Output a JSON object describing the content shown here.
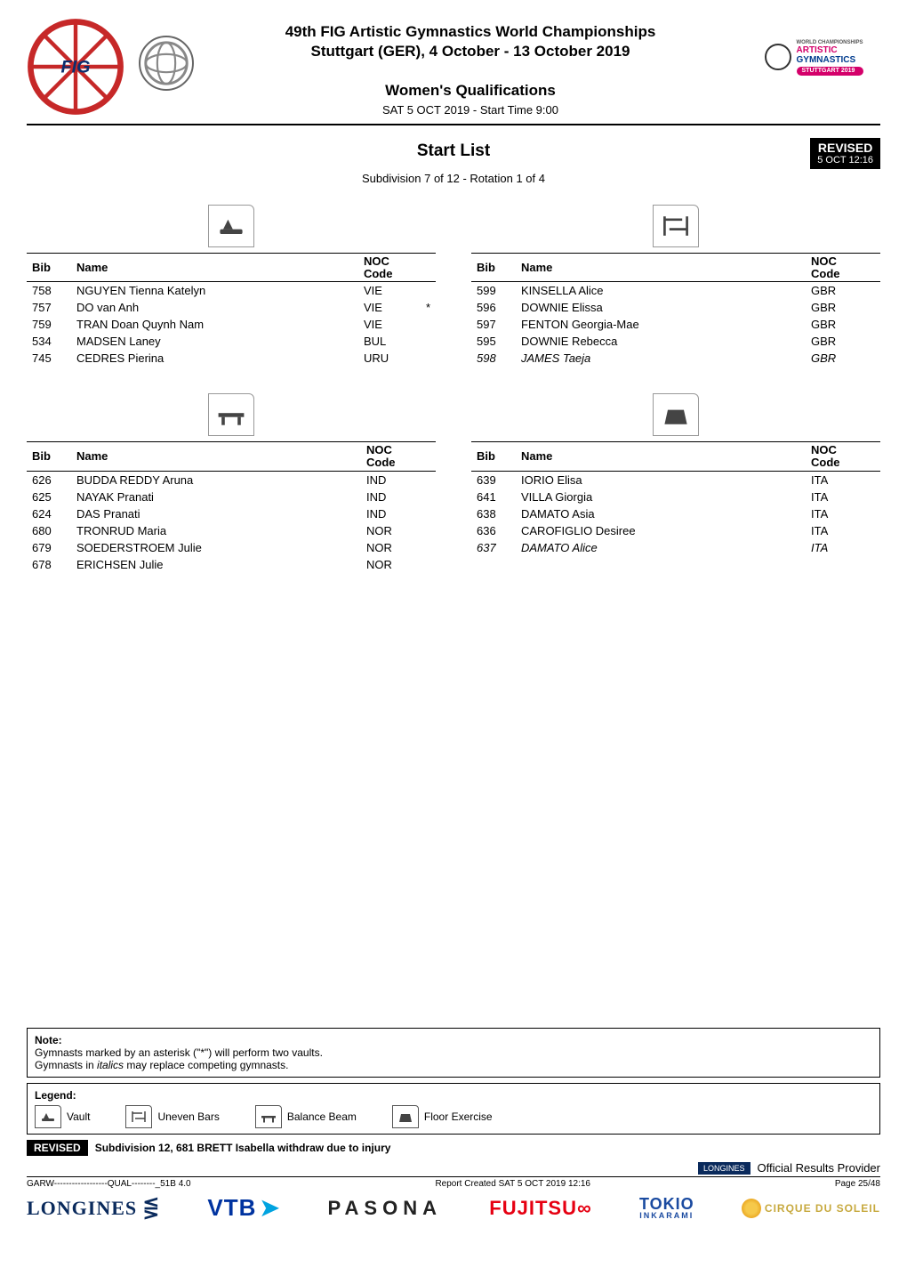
{
  "header": {
    "event_title": "49th FIG Artistic Gymnastics World Championships",
    "event_subtitle": "Stuttgart (GER), 4 October - 13 October 2019",
    "section_title": "Women's Qualifications",
    "session_line": "SAT 5 OCT 2019 - Start Time 9:00",
    "right_logo": {
      "line0": "WORLD CHAMPIONSHIPS",
      "line1": "ARTISTIC",
      "line2": "GYMNASTICS",
      "badge": "STUTTGART 2019"
    }
  },
  "title_block": {
    "doc_title": "Start List",
    "subdivision_line": "Subdivision 7 of 12 - Rotation 1 of 4",
    "revised": {
      "line1": "REVISED",
      "line2": "5 OCT 12:16"
    }
  },
  "table_headers": {
    "bib": "Bib",
    "name": "Name",
    "noc_l1": "NOC",
    "noc_l2": "Code"
  },
  "tables": {
    "vault": {
      "apparatus": "vault",
      "rows": [
        {
          "bib": "758",
          "name": "NGUYEN Tienna Katelyn",
          "noc": "VIE",
          "star": "",
          "italic": false
        },
        {
          "bib": "757",
          "name": "DO van Anh",
          "noc": "VIE",
          "star": "*",
          "italic": false
        },
        {
          "bib": "759",
          "name": "TRAN Doan Quynh Nam",
          "noc": "VIE",
          "star": "",
          "italic": false
        },
        {
          "bib": "534",
          "name": "MADSEN Laney",
          "noc": "BUL",
          "star": "",
          "italic": false
        },
        {
          "bib": "745",
          "name": "CEDRES Pierina",
          "noc": "URU",
          "star": "",
          "italic": false
        }
      ]
    },
    "beam": {
      "apparatus": "beam",
      "rows": [
        {
          "bib": "626",
          "name": "BUDDA REDDY Aruna",
          "noc": "IND",
          "star": "",
          "italic": false
        },
        {
          "bib": "625",
          "name": "NAYAK Pranati",
          "noc": "IND",
          "star": "",
          "italic": false
        },
        {
          "bib": "624",
          "name": "DAS Pranati",
          "noc": "IND",
          "star": "",
          "italic": false
        },
        {
          "bib": "680",
          "name": "TRONRUD Maria",
          "noc": "NOR",
          "star": "",
          "italic": false
        },
        {
          "bib": "679",
          "name": "SOEDERSTROEM Julie",
          "noc": "NOR",
          "star": "",
          "italic": false
        },
        {
          "bib": "678",
          "name": "ERICHSEN Julie",
          "noc": "NOR",
          "star": "",
          "italic": false
        }
      ]
    },
    "bars": {
      "apparatus": "bars",
      "rows": [
        {
          "bib": "599",
          "name": "KINSELLA Alice",
          "noc": "GBR",
          "star": "",
          "italic": false
        },
        {
          "bib": "596",
          "name": "DOWNIE Elissa",
          "noc": "GBR",
          "star": "",
          "italic": false
        },
        {
          "bib": "597",
          "name": "FENTON Georgia-Mae",
          "noc": "GBR",
          "star": "",
          "italic": false
        },
        {
          "bib": "595",
          "name": "DOWNIE Rebecca",
          "noc": "GBR",
          "star": "",
          "italic": false
        },
        {
          "bib": "598",
          "name": "JAMES Taeja",
          "noc": "GBR",
          "star": "",
          "italic": true
        }
      ]
    },
    "floor": {
      "apparatus": "floor",
      "rows": [
        {
          "bib": "639",
          "name": "IORIO Elisa",
          "noc": "ITA",
          "star": "",
          "italic": false
        },
        {
          "bib": "641",
          "name": "VILLA Giorgia",
          "noc": "ITA",
          "star": "",
          "italic": false
        },
        {
          "bib": "638",
          "name": "DAMATO Asia",
          "noc": "ITA",
          "star": "",
          "italic": false
        },
        {
          "bib": "636",
          "name": "CAROFIGLIO Desiree",
          "noc": "ITA",
          "star": "",
          "italic": false
        },
        {
          "bib": "637",
          "name": "DAMATO Alice",
          "noc": "ITA",
          "star": "",
          "italic": true
        }
      ]
    }
  },
  "note": {
    "title": "Note:",
    "line1": "Gymnasts marked by an asterisk (\"*\") will perform two vaults.",
    "line2_pre": "Gymnasts in ",
    "line2_it": "italics",
    "line2_post": " may replace competing gymnasts."
  },
  "legend": {
    "title": "Legend:",
    "items": [
      {
        "key": "vault",
        "label": "Vault"
      },
      {
        "key": "bars",
        "label": "Uneven Bars"
      },
      {
        "key": "beam",
        "label": "Balance Beam"
      },
      {
        "key": "floor",
        "label": "Floor Exercise"
      }
    ]
  },
  "revised_bar": {
    "chip": "REVISED",
    "text": "Subdivision 12, 681 BRETT Isabella withdraw due to injury"
  },
  "provider": {
    "chip": "LONGINES",
    "label": "Official Results Provider"
  },
  "footer_meta": {
    "left": "GARW------------------QUAL--------_51B 4.0",
    "center": "Report Created  SAT 5 OCT 2019 12:16",
    "right": "Page 25/48"
  },
  "sponsors": {
    "longines": "LONGINES",
    "vtb": "VTB",
    "pasona": "PASONA",
    "fujitsu": "FUJITSU",
    "tokio": "TOKIO",
    "tokio_sub": "INKARAMI",
    "cirque": "CIRQUE DU SOLEIL"
  },
  "colors": {
    "black": "#000000",
    "white": "#ffffff",
    "pink": "#d4006a",
    "navy": "#003b8e",
    "longines_navy": "#0a2a5c",
    "vtb_blue": "#0033a0",
    "vtb_light": "#00a3e0",
    "fujitsu_red": "#e60012",
    "tokio_blue": "#1a4aa0",
    "cirque_gold": "#c7a93e"
  }
}
